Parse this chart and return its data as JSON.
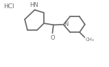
{
  "bg_color": "#ffffff",
  "line_color": "#6a6a6a",
  "text_color": "#6a6a6a",
  "lw": 1.3,
  "figsize": [
    1.59,
    0.98
  ],
  "dpi": 100,
  "xlim": [
    0,
    8
  ],
  "ylim": [
    0,
    5
  ]
}
